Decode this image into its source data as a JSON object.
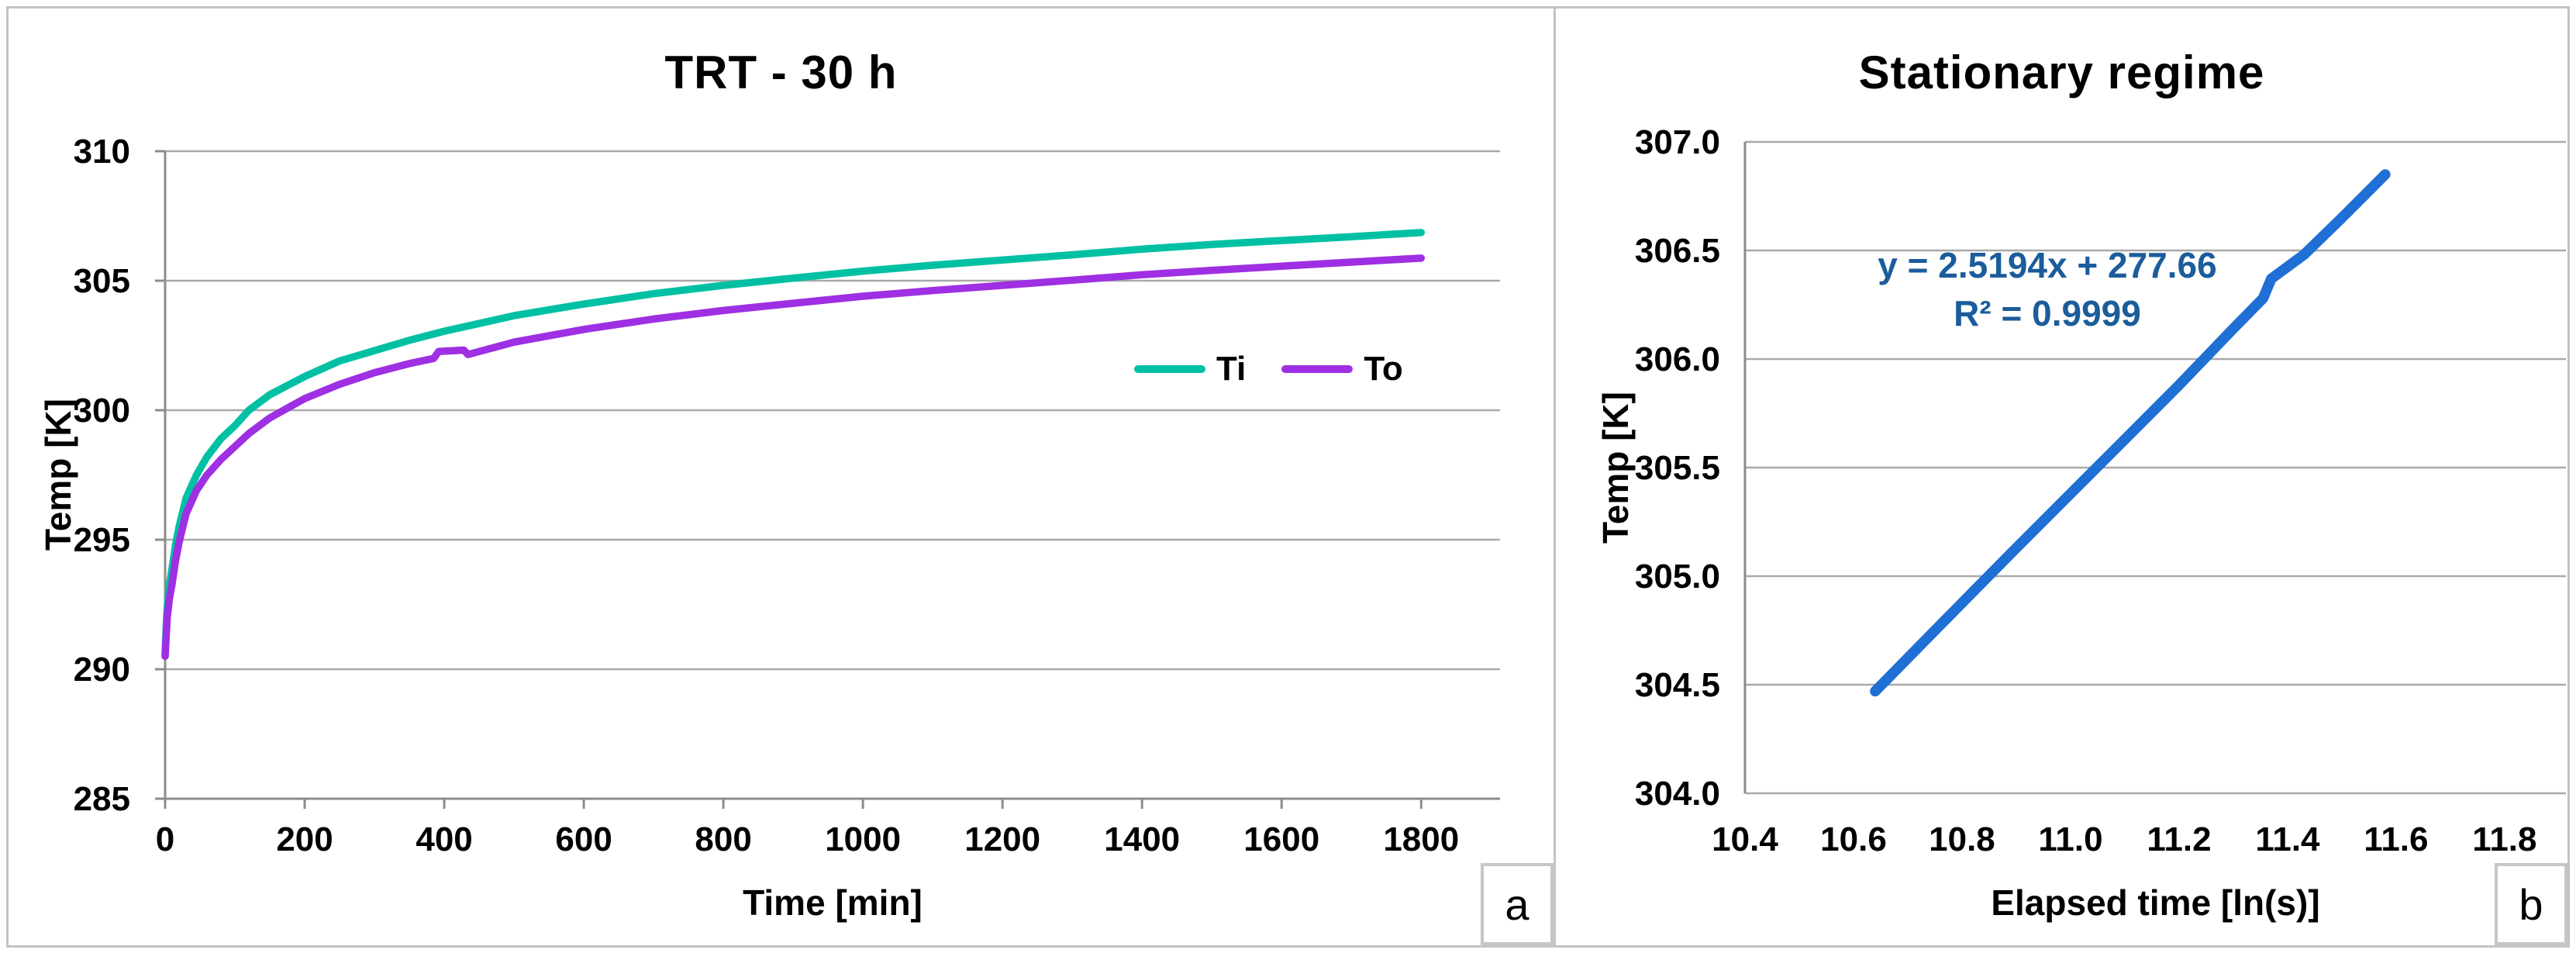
{
  "colors": {
    "grid": "#a9a9a9",
    "axis": "#8c8c8c",
    "frame_border": "#c3c3c3"
  },
  "panels": [
    {
      "label": "a"
    },
    {
      "label": "b"
    }
  ],
  "chart_data": [
    {
      "type": "line",
      "title": "TRT - 30 h",
      "xlabel": "Time [min]",
      "ylabel": "Temp [K]",
      "xlim": [
        0,
        1913
      ],
      "ylim": [
        285,
        310
      ],
      "xticks": [
        "0",
        "200",
        "400",
        "600",
        "800",
        "1000",
        "1200",
        "1400",
        "1600",
        "1800"
      ],
      "yticks": [
        "310",
        "305",
        "300",
        "295",
        "290",
        "285"
      ],
      "grid": "horizontal",
      "legend_position": "inside-right",
      "series": [
        {
          "name": "Ti",
          "color": "#00c0a3",
          "points": [
            [
              0,
              290.5
            ],
            [
              1,
              291.3
            ],
            [
              3,
              292.4
            ],
            [
              6,
              293.2
            ],
            [
              10,
              293.9
            ],
            [
              15,
              294.8
            ],
            [
              20,
              295.5
            ],
            [
              30,
              296.6
            ],
            [
              45,
              297.5
            ],
            [
              60,
              298.2
            ],
            [
              80,
              298.9
            ],
            [
              100,
              299.4
            ],
            [
              120,
              300.0
            ],
            [
              150,
              300.6
            ],
            [
              200,
              301.3
            ],
            [
              250,
              301.9
            ],
            [
              300,
              302.3
            ],
            [
              350,
              302.7
            ],
            [
              400,
              303.05
            ],
            [
              450,
              303.35
            ],
            [
              500,
              303.65
            ],
            [
              600,
              304.1
            ],
            [
              700,
              304.5
            ],
            [
              800,
              304.82
            ],
            [
              900,
              305.1
            ],
            [
              1000,
              305.37
            ],
            [
              1100,
              305.6
            ],
            [
              1200,
              305.8
            ],
            [
              1300,
              306.0
            ],
            [
              1400,
              306.22
            ],
            [
              1500,
              306.4
            ],
            [
              1600,
              306.55
            ],
            [
              1700,
              306.7
            ],
            [
              1800,
              306.86
            ]
          ]
        },
        {
          "name": "To",
          "color": "#9e2fe3",
          "points": [
            [
              0,
              290.5
            ],
            [
              1,
              291.0
            ],
            [
              3,
              292.0
            ],
            [
              6,
              292.7
            ],
            [
              10,
              293.3
            ],
            [
              15,
              294.2
            ],
            [
              20,
              294.9
            ],
            [
              30,
              296.0
            ],
            [
              45,
              296.9
            ],
            [
              60,
              297.5
            ],
            [
              80,
              298.1
            ],
            [
              100,
              298.6
            ],
            [
              120,
              299.1
            ],
            [
              150,
              299.7
            ],
            [
              200,
              300.45
            ],
            [
              250,
              301.0
            ],
            [
              300,
              301.45
            ],
            [
              350,
              301.8
            ],
            [
              385,
              302.0
            ],
            [
              392,
              302.27
            ],
            [
              428,
              302.32
            ],
            [
              434,
              302.15
            ],
            [
              500,
              302.63
            ],
            [
              600,
              303.12
            ],
            [
              700,
              303.52
            ],
            [
              800,
              303.85
            ],
            [
              900,
              304.13
            ],
            [
              1000,
              304.4
            ],
            [
              1100,
              304.62
            ],
            [
              1200,
              304.82
            ],
            [
              1300,
              305.02
            ],
            [
              1400,
              305.23
            ],
            [
              1500,
              305.4
            ],
            [
              1600,
              305.56
            ],
            [
              1700,
              305.72
            ],
            [
              1800,
              305.87
            ]
          ]
        }
      ]
    },
    {
      "type": "line",
      "title": "Stationary regime",
      "xlabel": "Elapsed time [ln(s)]",
      "ylabel": "Temp [K]",
      "xlim": [
        10.4,
        11.913
      ],
      "ylim": [
        304.0,
        307.0
      ],
      "xticks": [
        "10.4",
        "10.6",
        "10.8",
        "11.0",
        "11.2",
        "11.4",
        "11.6",
        "11.8"
      ],
      "yticks": [
        "307.0",
        "306.5",
        "306.0",
        "305.5",
        "305.0",
        "304.5",
        "304.0"
      ],
      "grid": "horizontal",
      "annotation": {
        "line1": "y = 2.5194x  + 277.66",
        "line2": "R² = 0.9999",
        "color": "#1b5c9b"
      },
      "series": [
        {
          "name": "",
          "color": "#1f6fd4",
          "points": [
            [
              10.64,
              304.47
            ],
            [
              10.75,
              304.75
            ],
            [
              10.9,
              305.13
            ],
            [
              11.0,
              305.38
            ],
            [
              11.1,
              305.63
            ],
            [
              11.2,
              305.88
            ],
            [
              11.3,
              306.14
            ],
            [
              11.355,
              306.28
            ],
            [
              11.37,
              306.37
            ],
            [
              11.43,
              306.48
            ],
            [
              11.5,
              306.65
            ],
            [
              11.58,
              306.85
            ]
          ]
        }
      ]
    }
  ]
}
